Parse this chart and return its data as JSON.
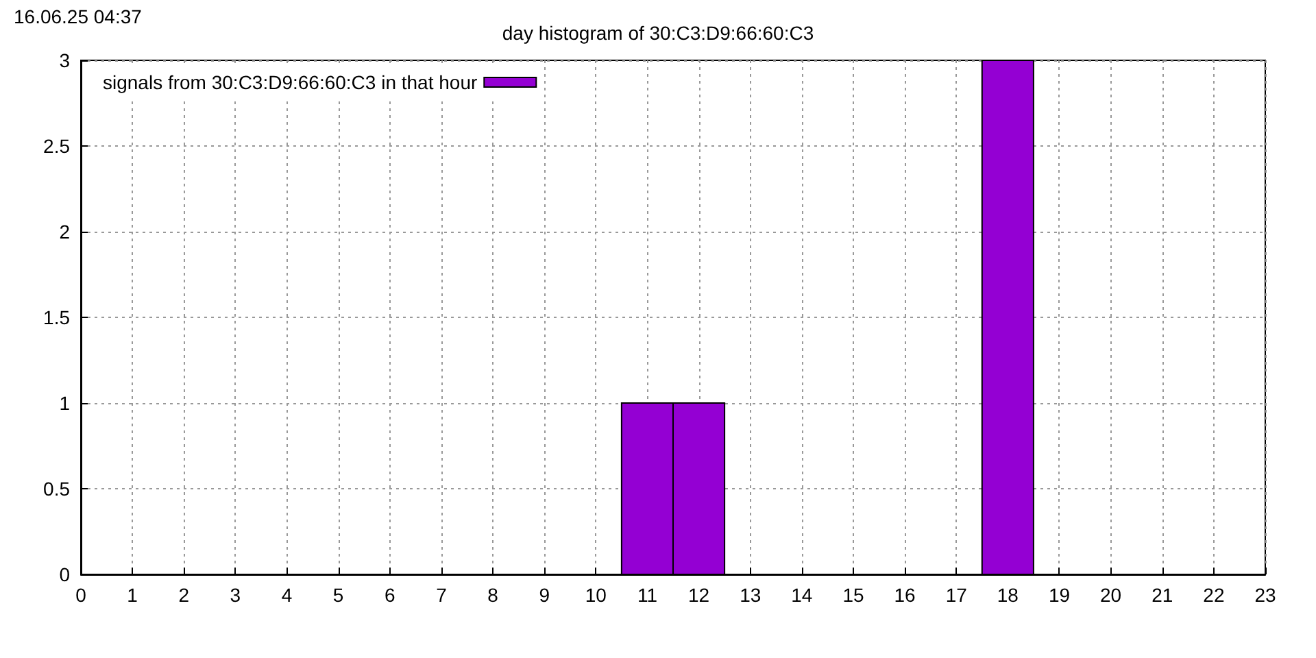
{
  "chart_data": {
    "type": "histogram",
    "title": "day histogram of 30:C3:D9:66:60:C3",
    "annotations": [
      "16.06.25 04:37"
    ],
    "bins": [
      10.5,
      11.5,
      12.5,
      13.5,
      14.5,
      15.5,
      16.5,
      17.5,
      18.5
    ],
    "series": [
      {
        "name": "signals from 30:C3:D9:66:60:C3 in that hour",
        "color": "#9400d3",
        "values": [
          1,
          1,
          0,
          0,
          0,
          0,
          0,
          3
        ]
      }
    ],
    "xlim": [
      0,
      23
    ],
    "xticks": [
      0,
      1,
      2,
      3,
      4,
      5,
      6,
      7,
      8,
      9,
      10,
      11,
      12,
      13,
      14,
      15,
      16,
      17,
      18,
      19,
      20,
      21,
      22,
      23
    ],
    "ylim": [
      0,
      3
    ],
    "yticks": [
      0,
      0.5,
      1,
      1.5,
      2,
      2.5,
      3
    ],
    "grid": true,
    "legend": "top left"
  }
}
